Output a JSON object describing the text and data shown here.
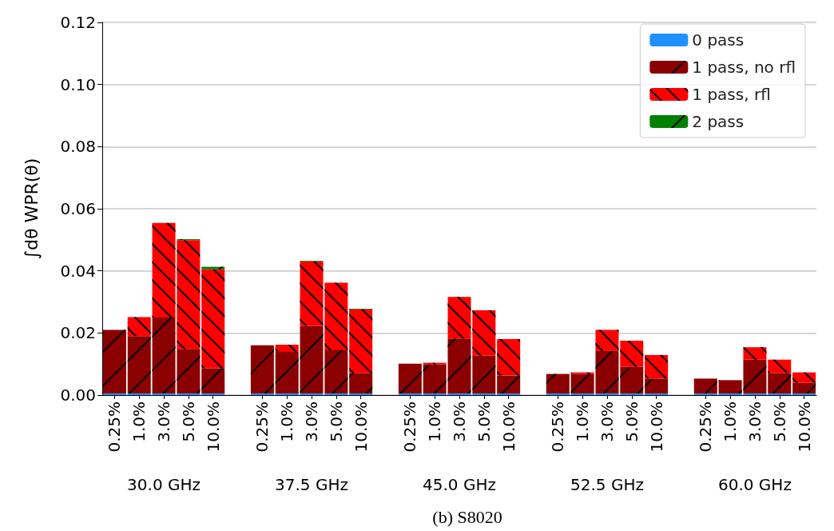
{
  "chart_data": {
    "type": "bar",
    "stacked": true,
    "ylabel": "∫dθ WPR(θ)",
    "categories": [
      "0.25%",
      "1.0%",
      "3.0%",
      "5.0%",
      "10.0%",
      null,
      "0.25%",
      "1.0%",
      "3.0%",
      "5.0%",
      "10.0%",
      null,
      "0.25%",
      "1.0%",
      "3.0%",
      "5.0%",
      "10.0%",
      null,
      "0.25%",
      "1.0%",
      "3.0%",
      "5.0%",
      "10.0%",
      null,
      "0.25%",
      "1.0%",
      "3.0%",
      "5.0%",
      "10.0%"
    ],
    "series": [
      {
        "name": "0 pass",
        "color": "#1e90ff",
        "values": [
          0.0005,
          0.0005,
          0.0005,
          0.0005,
          0.0005,
          null,
          0.0005,
          0.0005,
          0.0005,
          0.0005,
          0.0005,
          null,
          0.0005,
          0.0005,
          0.0005,
          0.0005,
          0.0005,
          null,
          0.0005,
          0.0005,
          0.0005,
          0.0005,
          0.0005,
          null,
          0.0005,
          0.0005,
          0.0005,
          0.0005,
          0.0005
        ]
      },
      {
        "name": "1 pass, no rfl",
        "color": "#8b0000",
        "values": [
          0.0205,
          0.0185,
          0.0245,
          0.0144,
          0.0081,
          null,
          0.0155,
          0.0134,
          0.0218,
          0.0139,
          0.0066,
          null,
          0.0096,
          0.0094,
          0.0177,
          0.0122,
          0.0058,
          null,
          0.0063,
          0.0063,
          0.0137,
          0.0086,
          0.0048,
          null,
          0.0048,
          0.0043,
          0.0109,
          0.0066,
          0.0035
        ]
      },
      {
        "name": "1 pass, rfl",
        "color": "#ff0000",
        "values": [
          0,
          0.0061,
          0.0304,
          0.035,
          0.0319,
          null,
          0,
          0.0023,
          0.0207,
          0.0218,
          0.0205,
          null,
          0,
          0.0005,
          0.0134,
          0.0146,
          0.0117,
          null,
          0,
          0.0005,
          0.0068,
          0.0084,
          0.0076,
          null,
          0,
          0,
          0.004,
          0.0043,
          0.0033
        ]
      },
      {
        "name": "2 pass",
        "color": "#008000",
        "values": [
          0,
          0,
          0,
          0.0003,
          0.0008,
          null,
          0,
          0,
          0.0002,
          0,
          0.0002,
          null,
          0,
          0,
          0,
          0,
          0,
          null,
          0,
          0,
          0,
          0,
          0,
          null,
          0,
          0,
          0,
          0,
          0
        ]
      }
    ],
    "ylim": [
      0,
      0.12
    ],
    "yticks": [
      {
        "value": 0,
        "label": "0.00"
      },
      {
        "value": 0.02,
        "label": "0.02"
      },
      {
        "value": 0.04,
        "label": "0.04"
      },
      {
        "value": 0.06,
        "label": "0.06"
      },
      {
        "value": 0.08,
        "label": "0.08"
      },
      {
        "value": 0.1,
        "label": "0.10"
      },
      {
        "value": 0.12,
        "label": "0.12"
      }
    ],
    "grid": "y",
    "legend": "top right",
    "annotations": [
      "30.0 GHz",
      "37.5 GHz",
      "45.0 GHz",
      "52.5 GHz",
      "60.0 GHz",
      "(b) S8020"
    ]
  }
}
